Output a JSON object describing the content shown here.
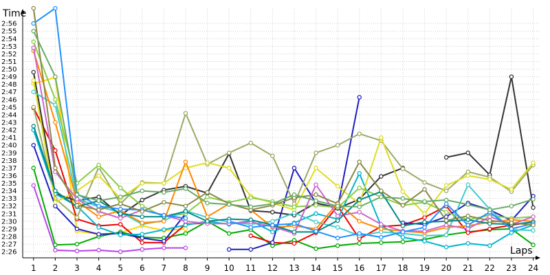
{
  "chart_data": {
    "type": "line",
    "ylabel": "Time",
    "xlabel": "Laps",
    "x": [
      1,
      2,
      3,
      4,
      5,
      6,
      7,
      8,
      9,
      10,
      11,
      12,
      13,
      14,
      15,
      16,
      17,
      18,
      19,
      20,
      21,
      22,
      23,
      24
    ],
    "xlim": [
      0.5,
      24.3
    ],
    "ylim": [
      145.2,
      178
    ],
    "y_ticks_seconds": [
      146,
      147,
      148,
      149,
      150,
      151,
      152,
      153,
      154,
      155,
      156,
      157,
      158,
      159,
      160,
      161,
      162,
      163,
      164,
      165,
      166,
      167,
      168,
      169,
      170,
      171,
      172,
      173,
      174,
      175,
      176
    ],
    "y_tick_labels": [
      "2:26",
      "2:27",
      "2:28",
      "2:29",
      "2:30",
      "2:31",
      "2:32",
      "2:33",
      "2:34",
      "2:35",
      "2:36",
      "2:37",
      "2:38",
      "2:39",
      "2:40",
      "2:41",
      "2:42",
      "2:43",
      "2:44",
      "2:45",
      "2:46",
      "2:47",
      "2:48",
      "2:49",
      "2:50",
      "2:51",
      "2:52",
      "2:53",
      "2:54",
      "2:55",
      "2:56"
    ],
    "grid": true,
    "legend": "none",
    "series": [
      {
        "color": "#b844e6",
        "values": [
          154.7,
          146.2,
          146.1,
          146.2,
          146.0,
          146.3,
          146.5,
          146.5,
          null,
          null,
          null,
          null,
          null,
          null,
          null,
          null,
          null,
          null,
          null,
          null,
          null,
          null,
          null,
          null
        ]
      },
      {
        "color": "#ffd700",
        "values": [
          168.1,
          168.9,
          148.7,
          148.3,
          148.5,
          149.4,
          148.8,
          149.0,
          null,
          null,
          null,
          null,
          null,
          null,
          null,
          null,
          null,
          null,
          null,
          null,
          null,
          null,
          null,
          null
        ]
      },
      {
        "color": "#00aa00",
        "values": [
          157.0,
          146.9,
          147.0,
          148.0,
          148.6,
          147.9,
          147.8,
          148.4,
          150.0,
          148.4,
          148.9,
          146.8,
          147.5,
          146.4,
          146.8,
          147.1,
          147.2,
          147.3,
          147.6,
          148.2,
          148.6,
          148.9,
          149.0,
          146.9
        ]
      },
      {
        "color": "#ee0000",
        "values": [
          164.9,
          159.3,
          150.3,
          149.4,
          149.6,
          147.2,
          147.2,
          149.6,
          149.8,
          null,
          148.1,
          147.2,
          147.1,
          148.5,
          152.0,
          147.7,
          149.3,
          149.5,
          150.5,
          152.0,
          148.5,
          149.0,
          149.5,
          149.9
        ]
      },
      {
        "color": "#1e1ebe",
        "values": [
          160.0,
          152.0,
          149.0,
          148.3,
          148.4,
          147.8,
          147.4,
          151.0,
          null,
          146.3,
          146.3,
          147.2,
          157.0,
          152.4,
          151.8,
          166.3,
          null,
          149.8,
          149.6,
          150.6,
          152.4,
          151.5,
          150.1,
          153.3
        ]
      },
      {
        "color": "#333333",
        "values": [
          169.6,
          153.6,
          152.7,
          153.2,
          150.8,
          152.8,
          154.1,
          154.6,
          153.7,
          158.9,
          151.4,
          151.2,
          150.8,
          152.4,
          151.7,
          152.9,
          155.9,
          157.0,
          null,
          158.4,
          159.0,
          156.1,
          169.0,
          151.8
        ]
      },
      {
        "color": "#00b4cc",
        "values": [
          162.0,
          153.6,
          152.0,
          149.2,
          148.2,
          148.3,
          148.9,
          149.5,
          150.0,
          149.6,
          150.1,
          148.6,
          149.8,
          151.0,
          150.3,
          156.3,
          149.4,
          147.9,
          147.4,
          146.6,
          147.1,
          146.8,
          148.5,
          149.5
        ]
      },
      {
        "color": "#9aaa66",
        "values": [
          165.0,
          153.0,
          150.5,
          157.1,
          152.3,
          155.1,
          155.0,
          164.2,
          157.5,
          159.0,
          160.3,
          158.6,
          152.3,
          159.0,
          160.0,
          161.5,
          160.6,
          156.9,
          155.1,
          154.0,
          156.5,
          155.8,
          153.9,
          157.4
        ]
      },
      {
        "color": "#dddd22",
        "values": [
          168.5,
          152.5,
          154.0,
          156.0,
          153.0,
          155.0,
          155.0,
          157.0,
          157.7,
          157.0,
          153.3,
          152.4,
          151.5,
          157.0,
          154.6,
          152.3,
          161.0,
          153.9,
          151.0,
          154.7,
          156.0,
          155.5,
          154.2,
          157.7
        ]
      },
      {
        "color": "#88cc44",
        "values": [
          173.6,
          166.0,
          155.0,
          157.4,
          154.4,
          152.0,
          150.6,
          151.0,
          153.2,
          152.5,
          153.1,
          152.6,
          151.9,
          152.1,
          151.8,
          154.4,
          153.2,
          152.1,
          152.5,
          151.2,
          150.2,
          150.8,
          150.4,
          150.6
        ]
      },
      {
        "color": "#44cccc",
        "values": [
          167.0,
          165.3,
          153.0,
          151.9,
          151.2,
          149.6,
          150.1,
          151.4,
          150.5,
          149.9,
          149.6,
          150.0,
          151.1,
          149.9,
          149.2,
          148.1,
          148.6,
          148.4,
          148.1,
          148.2,
          154.8,
          151.6,
          148.9,
          148.8
        ]
      },
      {
        "color": "#ff8800",
        "values": [
          172.4,
          163.0,
          152.6,
          150.6,
          151.4,
          149.8,
          150.0,
          157.8,
          150.6,
          152.3,
          151.5,
          149.2,
          149.4,
          149.0,
          152.4,
          150.0,
          149.0,
          148.7,
          148.5,
          149.2,
          149.4,
          149.9,
          150.2,
          150.0
        ]
      },
      {
        "color": "#cc66cc",
        "values": [
          172.8,
          156.5,
          152.9,
          151.3,
          150.4,
          151.5,
          150.8,
          150.0,
          149.7,
          149.7,
          149.9,
          149.3,
          148.4,
          154.8,
          150.7,
          151.2,
          149.6,
          148.7,
          148.7,
          149.5,
          149.0,
          150.6,
          149.6,
          150.6
        ]
      },
      {
        "color": "#008888",
        "values": [
          162.5,
          154.0,
          151.9,
          152.7,
          151.0,
          150.6,
          150.6,
          151.3,
          150.0,
          150.3,
          150.2,
          149.5,
          148.6,
          148.6,
          150.1,
          152.8,
          153.9,
          149.4,
          149.9,
          150.0,
          150.2,
          149.7,
          149.6,
          149.9
        ]
      },
      {
        "color": "#1e90ff",
        "values": [
          176.0,
          178.0,
          153.6,
          152.0,
          151.6,
          151.5,
          150.8,
          150.4,
          null,
          150.0,
          149.2,
          149.5,
          149.7,
          148.7,
          147.8,
          148.4,
          147.9,
          148.6,
          149.2,
          152.3,
          149.5,
          151.2,
          149.0,
          149.7
        ]
      },
      {
        "color": "#888844",
        "values": [
          178.0,
          157.0,
          152.1,
          151.5,
          152.3,
          151.3,
          152.5,
          152.0,
          153.8,
          152.3,
          151.5,
          152.1,
          153.1,
          153.5,
          152.3,
          157.8,
          154.0,
          152.1,
          154.2,
          150.1,
          150.7,
          150.1,
          149.8,
          149.5
        ]
      },
      {
        "color": "#66aa66",
        "values": [
          175.0,
          169.0,
          153.5,
          152.7,
          153.2,
          154.0,
          153.8,
          154.3,
          152.4,
          152.2,
          151.9,
          152.3,
          153.5,
          152.7,
          152.0,
          151.9,
          153.2,
          153.0,
          152.6,
          152.8,
          152.2,
          151.5,
          152.0,
          152.9
        ]
      }
    ]
  }
}
